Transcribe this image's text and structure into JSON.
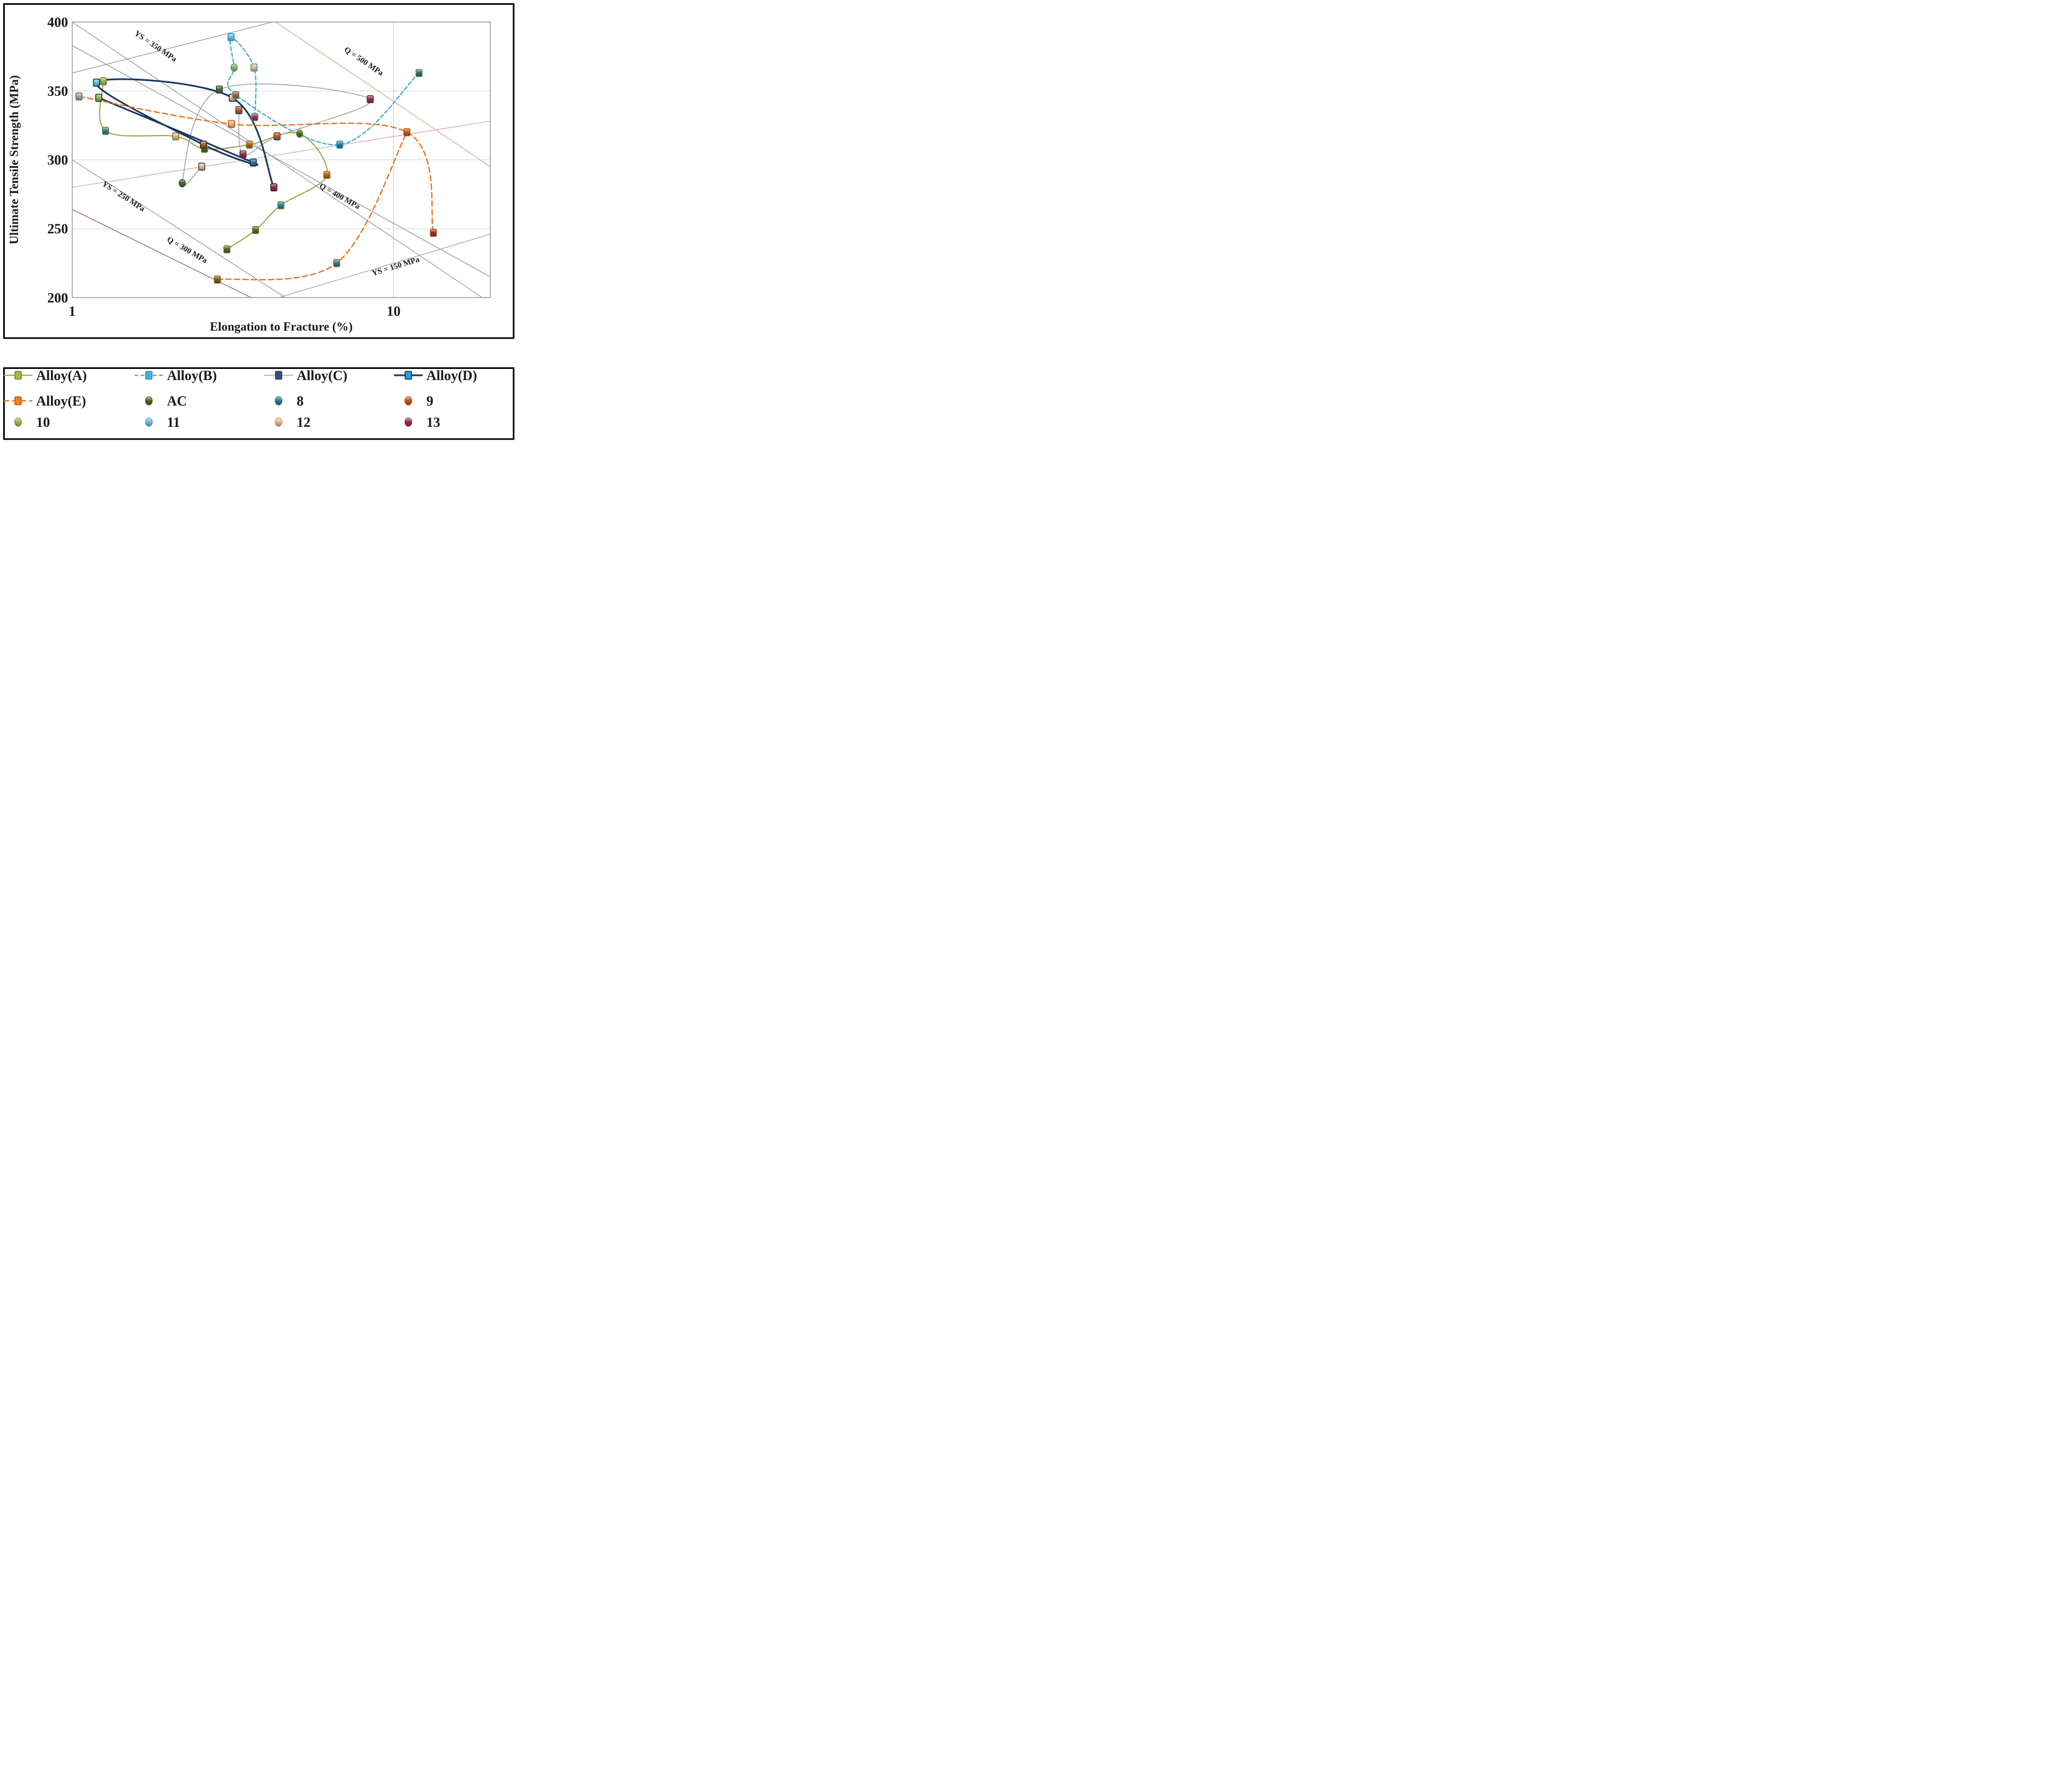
{
  "chart_data": {
    "type": "scatter",
    "title": "",
    "xlabel": "Elongation to Fracture (%)",
    "ylabel": "Ultimate Tensile Strength (MPa)",
    "x_scale": "log",
    "x_range": [
      1,
      20
    ],
    "y_range": [
      200,
      400
    ],
    "x_tick_labels": [
      "1",
      "10"
    ],
    "x_tick_values": [
      1,
      10
    ],
    "y_tick_labels": [
      "400",
      "350",
      "300",
      "250",
      "200"
    ],
    "y_tick_values": [
      400,
      350,
      300,
      250,
      200
    ],
    "gridlines_y": [
      350,
      300,
      250
    ],
    "gridlines_x": [
      10
    ],
    "legend_position": "bottom-box",
    "condition_colors": {
      "AC": "#4e6b23",
      "8": "#2a7e95",
      "9": "#c45a11",
      "10": "#94ba4b",
      "11": "#6bbde8",
      "12": "#edb97f",
      "13": "#9b2f3d"
    },
    "reference_lines": [
      {
        "label": "YS = 350 MPa",
        "x1": 1,
        "y1": 400,
        "x2": 20,
        "y2": 196,
        "color": "#8c8c99",
        "lx": 1.8,
        "ly": 381,
        "rot": 34
      },
      {
        "label": "",
        "x1": 1,
        "y1": 363,
        "x2": 4.2,
        "y2": 400,
        "color": "#8c8c99",
        "lx": 0,
        "ly": 0,
        "rot": 0
      },
      {
        "label": "Q = 500 MPa",
        "x1": 4.3,
        "y1": 400,
        "x2": 20,
        "y2": 295,
        "color": "#d49a78",
        "lx": 8.0,
        "ly": 370,
        "rot": 34
      },
      {
        "label": "Q = 400 MPa",
        "x1": 1,
        "y1": 383,
        "x2": 20,
        "y2": 215,
        "color": "#7b88a0",
        "lx": 6.74,
        "ly": 272,
        "rot": 29
      },
      {
        "label": "YS = 250 MPa",
        "x1": 1,
        "y1": 300,
        "x2": 4.6,
        "y2": 200,
        "color": "#a08088",
        "lx": 1.43,
        "ly": 272,
        "rot": 33
      },
      {
        "label": "Q = 300 MPa",
        "x1": 1,
        "y1": 264,
        "x2": 3.6,
        "y2": 200,
        "color": "#8f4a50",
        "lx": 2.26,
        "ly": 233,
        "rot": 30
      },
      {
        "label": "YS = 150 MPa",
        "x1": 4.4,
        "y1": 200,
        "x2": 20,
        "y2": 246,
        "color": "#8f9bb3",
        "lx": 10.2,
        "ly": 221,
        "rot": -17
      },
      {
        "label": "",
        "x1": 1,
        "y1": 280,
        "x2": 20,
        "y2": 328,
        "color": "#c4a3ab",
        "lx": 0,
        "ly": 0,
        "rot": 0
      }
    ],
    "series": [
      {
        "name": "Alloy(C)",
        "color": "#9aa0a8",
        "border": "#36425c",
        "width": 1.6,
        "dash": "",
        "points": [
          {
            "x": 2.53,
            "y": 295,
            "c": "12",
            "s": "sq"
          },
          {
            "x": 2.2,
            "y": 283,
            "c": "AC",
            "s": "ci"
          },
          {
            "x": 2.87,
            "y": 351,
            "c": "AC",
            "s": "sq"
          },
          {
            "x": 8.46,
            "y": 344,
            "c": "13",
            "s": "sq"
          },
          {
            "x": 4.34,
            "y": 317,
            "c": "9",
            "s": "sq"
          },
          {
            "x": 3.4,
            "y": 304,
            "c": "13",
            "s": "sq"
          },
          {
            "x": 3.3,
            "y": 336,
            "c": "9",
            "s": "sq"
          }
        ],
        "paths": [
          [
            0,
            1,
            2,
            3,
            4,
            5,
            6
          ]
        ]
      },
      {
        "name": "Alloy(A)",
        "color": "#9aa94c",
        "border": "#6f7d33",
        "width": 2.2,
        "dash": "",
        "points": [
          {
            "x": 1.25,
            "y": 357,
            "c": "10",
            "s": "sq"
          },
          {
            "x": 1.27,
            "y": 321,
            "c": "8",
            "s": "sq"
          },
          {
            "x": 2.1,
            "y": 317,
            "c": "12",
            "s": "sq"
          },
          {
            "x": 2.58,
            "y": 308,
            "c": "AC",
            "s": "sq"
          },
          {
            "x": 3.56,
            "y": 311,
            "c": "9",
            "s": "sq"
          },
          {
            "x": 5.1,
            "y": 319,
            "c": "AC",
            "s": "ci"
          },
          {
            "x": 6.2,
            "y": 289,
            "c": "9",
            "s": "sq"
          },
          {
            "x": 4.46,
            "y": 267,
            "c": "8",
            "s": "sq"
          },
          {
            "x": 3.72,
            "y": 249,
            "c": "AC",
            "s": "sq"
          },
          {
            "x": 3.03,
            "y": 235,
            "c": "AC",
            "s": "sq"
          }
        ],
        "paths": [
          [
            0,
            1,
            2,
            3,
            4,
            5,
            6,
            7,
            8,
            9
          ]
        ]
      },
      {
        "name": "Alloy(D)",
        "color": "#1d3560",
        "border": "#142849",
        "width": 3.2,
        "dash": "",
        "points": [
          {
            "x": 1.21,
            "y": 345,
            "c": "10",
            "s": "sq"
          },
          {
            "x": 3.66,
            "y": 298,
            "c": "8",
            "s": "sq"
          },
          {
            "x": 2.56,
            "y": 311,
            "c": "9",
            "s": "sq"
          },
          {
            "x": 1.19,
            "y": 356,
            "c": "11",
            "s": "sq"
          },
          {
            "x": 3.15,
            "y": 345,
            "c": "12",
            "s": "sq"
          },
          {
            "x": 4.24,
            "y": 280,
            "c": "13",
            "s": "sq"
          }
        ],
        "paths": [
          [
            0,
            1,
            2,
            3,
            4,
            5
          ]
        ]
      },
      {
        "name": "Alloy(E)",
        "color": "#e2711d",
        "border": "#b05408",
        "width": 2.4,
        "dash": "10 6",
        "points": [
          {
            "x": 1.05,
            "y": 346,
            "c": "11",
            "s": "sq"
          },
          {
            "x": 3.13,
            "y": 326,
            "c": "12",
            "s": "sq"
          },
          {
            "x": 11.0,
            "y": 320,
            "c": "9",
            "s": "sq"
          },
          {
            "x": 13.3,
            "y": 247,
            "c": "13",
            "s": "sq"
          },
          {
            "x": 2.83,
            "y": 213,
            "c": "AC",
            "s": "sq"
          },
          {
            "x": 6.65,
            "y": 225,
            "c": "8",
            "s": "sq"
          }
        ],
        "paths": [
          [
            0,
            1,
            2,
            3
          ],
          [
            4,
            5,
            2
          ]
        ]
      },
      {
        "name": "Alloy(B)",
        "color": "#45aecb",
        "border": "#2b93b3",
        "width": 2.4,
        "dash": "7 4.5",
        "points": [
          {
            "x": 12.0,
            "y": 363,
            "c": "AC",
            "s": "sq"
          },
          {
            "x": 6.8,
            "y": 311,
            "c": "8",
            "s": "sq"
          },
          {
            "x": 3.23,
            "y": 347,
            "c": "9",
            "s": "sq"
          },
          {
            "x": 3.19,
            "y": 367,
            "c": "10",
            "s": "ci"
          },
          {
            "x": 3.12,
            "y": 389,
            "c": "11",
            "s": "sq"
          },
          {
            "x": 3.68,
            "y": 367,
            "c": "12",
            "s": "sq"
          },
          {
            "x": 3.7,
            "y": 331,
            "c": "13",
            "s": "sq"
          }
        ],
        "paths": [
          [
            0,
            1,
            2,
            3,
            4,
            5,
            6
          ]
        ]
      }
    ]
  },
  "legend": {
    "items": [
      {
        "label": "Alloy(A)",
        "type": "line",
        "series": "Alloy(A)",
        "fill": "#a0be49",
        "row": 0,
        "col": 0
      },
      {
        "label": "Alloy(B)",
        "type": "line",
        "series": "Alloy(B)",
        "fill": "#3eb5d8",
        "row": 0,
        "col": 1
      },
      {
        "label": "Alloy(C)",
        "type": "line",
        "series": "Alloy(C)",
        "fill": "#35517b",
        "row": 0,
        "col": 2
      },
      {
        "label": "Alloy(D)",
        "type": "line",
        "series": "Alloy(D)",
        "fill": "#2b9cd0",
        "row": 0,
        "col": 3
      },
      {
        "label": "Alloy(E)",
        "type": "line",
        "series": "Alloy(E)",
        "fill": "#ee8022",
        "row": 1,
        "col": 0
      },
      {
        "label": "AC",
        "type": "circle",
        "cond": "AC",
        "row": 1,
        "col": 1
      },
      {
        "label": "8",
        "type": "circle",
        "cond": "8",
        "row": 1,
        "col": 2
      },
      {
        "label": "9",
        "type": "circle",
        "cond": "9",
        "row": 1,
        "col": 3
      },
      {
        "label": "10",
        "type": "circle",
        "cond": "10",
        "row": 2,
        "col": 0
      },
      {
        "label": "11",
        "type": "circle",
        "cond": "11",
        "row": 2,
        "col": 1
      },
      {
        "label": "12",
        "type": "circle",
        "cond": "12",
        "row": 2,
        "col": 2
      },
      {
        "label": "13",
        "type": "circle",
        "cond": "13",
        "row": 2,
        "col": 3
      }
    ]
  }
}
